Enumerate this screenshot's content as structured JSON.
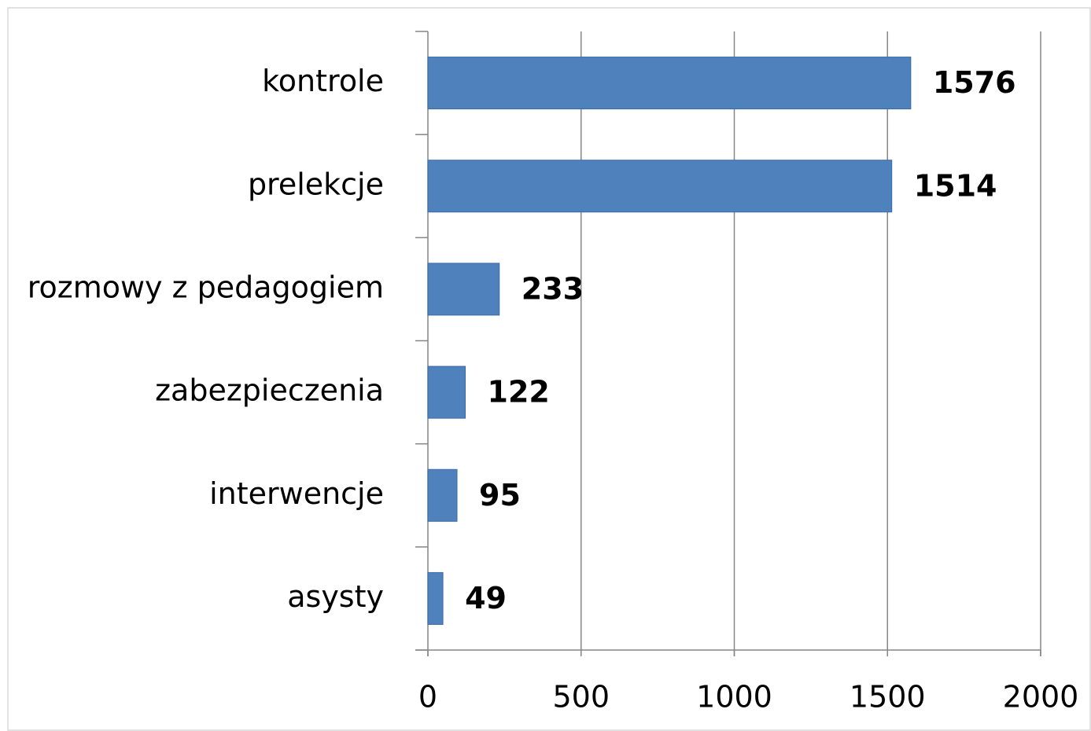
{
  "chart_data": {
    "type": "bar",
    "orientation": "horizontal",
    "categories": [
      "kontrole",
      "prelekcje",
      "rozmowy z pedagogiem",
      "zabezpieczenia",
      "interwencje",
      "asysty"
    ],
    "values": [
      1576,
      1514,
      233,
      122,
      95,
      49
    ],
    "color": "#4f81bd",
    "xlim": [
      0,
      2000
    ],
    "xticks": [
      0,
      500,
      1000,
      1500,
      2000
    ],
    "grid": true
  }
}
